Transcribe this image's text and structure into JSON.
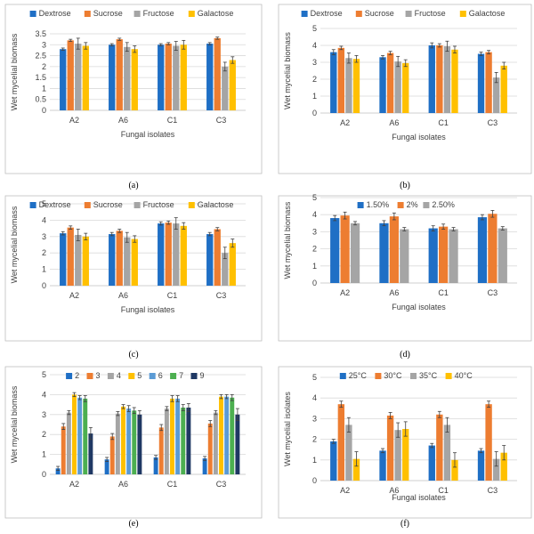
{
  "chart_data": [
    {
      "type": "bar",
      "panel": "a",
      "caption": "(a)",
      "categories": [
        "A2",
        "A6",
        "C1",
        "C3"
      ],
      "xlabel": "Fungal isolates",
      "ylabel": "Wet mycelial biomass",
      "ylim": [
        0,
        3.5
      ],
      "yticks": [
        "0",
        "0.5",
        "1",
        "1.5",
        "2",
        "2.5",
        "3",
        "3.5"
      ],
      "ystep": 0.5,
      "legend_position": "top",
      "series": [
        {
          "name": "Dextrose",
          "color": "#1f6fc5",
          "values": [
            2.8,
            3.0,
            3.0,
            3.05
          ],
          "errors": [
            0.05,
            0.05,
            0.05,
            0.05
          ]
        },
        {
          "name": "Sucrose",
          "color": "#ed7d31",
          "values": [
            3.2,
            3.25,
            3.05,
            3.3
          ],
          "errors": [
            0.05,
            0.05,
            0.05,
            0.05
          ]
        },
        {
          "name": "Fructose",
          "color": "#a5a5a5",
          "values": [
            3.05,
            2.9,
            2.95,
            2.0
          ],
          "errors": [
            0.25,
            0.2,
            0.2,
            0.2
          ]
        },
        {
          "name": "Galactose",
          "color": "#ffc000",
          "values": [
            2.95,
            2.8,
            3.0,
            2.3
          ],
          "errors": [
            0.15,
            0.15,
            0.2,
            0.15
          ]
        }
      ]
    },
    {
      "type": "bar",
      "panel": "b",
      "caption": "(b)",
      "categories": [
        "A2",
        "A6",
        "C1",
        "C3"
      ],
      "xlabel": "Fungal isolates",
      "ylabel": "Wet mycelial biomass",
      "ylim": [
        0,
        5
      ],
      "yticks": [
        "0",
        "1",
        "2",
        "3",
        "4",
        "5"
      ],
      "ystep": 1,
      "legend_position": "top",
      "series": [
        {
          "name": "Dextrose",
          "color": "#1f6fc5",
          "values": [
            3.6,
            3.3,
            4.0,
            3.5
          ],
          "errors": [
            0.15,
            0.1,
            0.15,
            0.1
          ]
        },
        {
          "name": "Sucrose",
          "color": "#ed7d31",
          "values": [
            3.85,
            3.55,
            4.0,
            3.6
          ],
          "errors": [
            0.1,
            0.1,
            0.1,
            0.1
          ]
        },
        {
          "name": "Fructose",
          "color": "#a5a5a5",
          "values": [
            3.25,
            3.05,
            3.95,
            2.1
          ],
          "errors": [
            0.3,
            0.3,
            0.3,
            0.3
          ]
        },
        {
          "name": "Galactose",
          "color": "#ffc000",
          "values": [
            3.2,
            2.95,
            3.75,
            2.8
          ],
          "errors": [
            0.2,
            0.2,
            0.2,
            0.2
          ]
        }
      ]
    },
    {
      "type": "bar",
      "panel": "c",
      "caption": "(c)",
      "categories": [
        "A2",
        "A6",
        "C1",
        "C3"
      ],
      "xlabel": "Fungal isolates",
      "ylabel": "Wet mycelial biomass",
      "ylim": [
        0,
        5
      ],
      "yticks": [
        "0",
        "1",
        "2",
        "3",
        "4",
        "5"
      ],
      "ystep": 1,
      "legend_position": "top",
      "series": [
        {
          "name": "Dextrose",
          "color": "#1f6fc5",
          "values": [
            3.2,
            3.15,
            3.8,
            3.15
          ],
          "errors": [
            0.1,
            0.1,
            0.1,
            0.1
          ]
        },
        {
          "name": "Sucrose",
          "color": "#ed7d31",
          "values": [
            3.55,
            3.35,
            3.85,
            3.45
          ],
          "errors": [
            0.1,
            0.1,
            0.1,
            0.1
          ]
        },
        {
          "name": "Fructose",
          "color": "#a5a5a5",
          "values": [
            3.1,
            2.95,
            3.8,
            2.0
          ],
          "errors": [
            0.35,
            0.3,
            0.35,
            0.35
          ]
        },
        {
          "name": "Galactose",
          "color": "#ffc000",
          "values": [
            3.0,
            2.85,
            3.65,
            2.6
          ],
          "errors": [
            0.2,
            0.2,
            0.2,
            0.25
          ]
        }
      ]
    },
    {
      "type": "bar",
      "panel": "d",
      "caption": "(d)",
      "categories": [
        "A2",
        "A6",
        "C1",
        "C3"
      ],
      "xlabel": "Fungal isolates",
      "ylabel": "Wet mycelial biomass",
      "ylim": [
        0,
        5
      ],
      "yticks": [
        "0",
        "1",
        "2",
        "3",
        "4",
        "5"
      ],
      "ystep": 1,
      "legend_position": "top",
      "series": [
        {
          "name": "1.50%",
          "color": "#1f6fc5",
          "values": [
            3.8,
            3.5,
            3.2,
            3.85
          ],
          "errors": [
            0.15,
            0.15,
            0.15,
            0.15
          ]
        },
        {
          "name": "2%",
          "color": "#ed7d31",
          "values": [
            3.95,
            3.9,
            3.3,
            4.05
          ],
          "errors": [
            0.2,
            0.2,
            0.15,
            0.2
          ]
        },
        {
          "name": "2.50%",
          "color": "#a5a5a5",
          "values": [
            3.5,
            3.15,
            3.15,
            3.2
          ],
          "errors": [
            0.1,
            0.1,
            0.1,
            0.1
          ]
        }
      ]
    },
    {
      "type": "bar",
      "panel": "e",
      "caption": "(e)",
      "categories": [
        "A2",
        "A6",
        "C1",
        "C3"
      ],
      "xlabel": "",
      "ylabel": "Wet mycelial biomass",
      "ylim": [
        0,
        5
      ],
      "yticks": [
        "0",
        "1",
        "2",
        "3",
        "4",
        "5"
      ],
      "ystep": 1,
      "legend_position": "top",
      "series": [
        {
          "name": "2",
          "color": "#1f6fc5",
          "values": [
            0.3,
            0.75,
            0.85,
            0.8
          ],
          "errors": [
            0.1,
            0.1,
            0.1,
            0.1
          ]
        },
        {
          "name": "3",
          "color": "#ed7d31",
          "values": [
            2.4,
            1.9,
            2.35,
            2.55
          ],
          "errors": [
            0.15,
            0.15,
            0.15,
            0.15
          ]
        },
        {
          "name": "4",
          "color": "#a5a5a5",
          "values": [
            3.1,
            3.05,
            3.3,
            3.1
          ],
          "errors": [
            0.1,
            0.1,
            0.1,
            0.1
          ]
        },
        {
          "name": "5",
          "color": "#ffc000",
          "values": [
            4.0,
            3.4,
            3.8,
            3.9
          ],
          "errors": [
            0.1,
            0.1,
            0.15,
            0.1
          ]
        },
        {
          "name": "6",
          "color": "#5b9bd5",
          "values": [
            3.85,
            3.3,
            3.8,
            3.9
          ],
          "errors": [
            0.1,
            0.15,
            0.15,
            0.1
          ]
        },
        {
          "name": "7",
          "color": "#4caf50",
          "values": [
            3.8,
            3.2,
            3.35,
            3.85
          ],
          "errors": [
            0.15,
            0.15,
            0.15,
            0.15
          ]
        },
        {
          "name": "9",
          "color": "#1f3864",
          "values": [
            2.05,
            3.0,
            3.35,
            3.0
          ],
          "errors": [
            0.3,
            0.2,
            0.2,
            0.3
          ]
        }
      ]
    },
    {
      "type": "bar",
      "panel": "f",
      "caption": "(f)",
      "categories": [
        "A2",
        "A6",
        "C1",
        "C3"
      ],
      "xlabel": "Fungal isolates",
      "ylabel": "Wet mycelial isolates",
      "ylim": [
        0,
        5
      ],
      "yticks": [
        "0",
        "1",
        "2",
        "3",
        "4",
        "5"
      ],
      "ystep": 1,
      "legend_position": "top",
      "series": [
        {
          "name": "25°C",
          "color": "#1f6fc5",
          "values": [
            1.9,
            1.45,
            1.7,
            1.45
          ],
          "errors": [
            0.1,
            0.1,
            0.1,
            0.1
          ]
        },
        {
          "name": "30°C",
          "color": "#ed7d31",
          "values": [
            3.7,
            3.15,
            3.2,
            3.7
          ],
          "errors": [
            0.15,
            0.15,
            0.15,
            0.15
          ]
        },
        {
          "name": "35°C",
          "color": "#a5a5a5",
          "values": [
            2.7,
            2.45,
            2.7,
            1.05
          ],
          "errors": [
            0.35,
            0.35,
            0.35,
            0.35
          ]
        },
        {
          "name": "40°C",
          "color": "#ffc000",
          "values": [
            1.05,
            2.5,
            1.0,
            1.35
          ],
          "errors": [
            0.35,
            0.35,
            0.35,
            0.35
          ]
        }
      ]
    }
  ]
}
